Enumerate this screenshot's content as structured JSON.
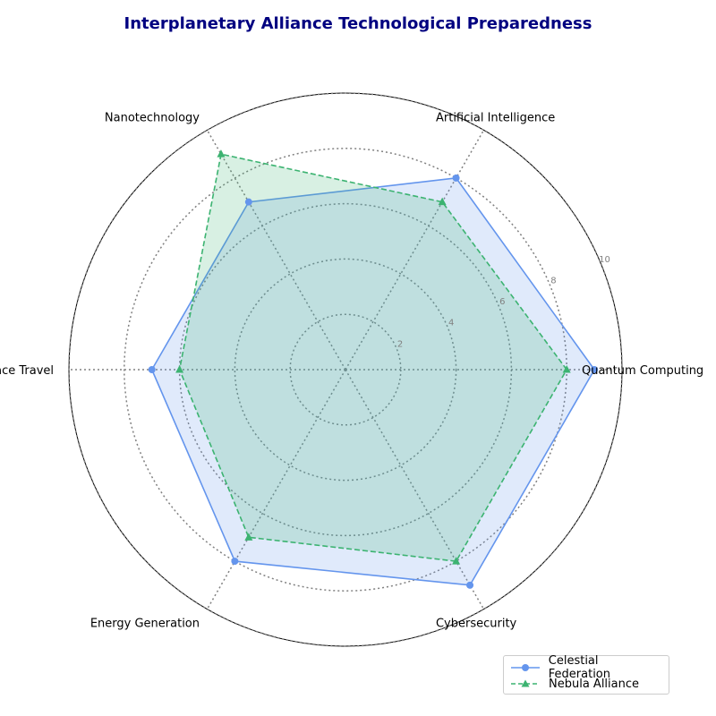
{
  "chart_data": {
    "type": "radar",
    "title": "Interplanetary Alliance Technological Preparedness",
    "categories": [
      "Quantum Computing",
      "Artificial Intelligence",
      "Nanotechnology",
      "Space Travel",
      "Energy Generation",
      "Cybersecurity"
    ],
    "rlim": [
      0,
      10
    ],
    "rticks": [
      "2",
      "4",
      "6",
      "8",
      "10"
    ],
    "grid": true,
    "legend_position": "bottom-right",
    "series": [
      {
        "name": "Celestial Federation",
        "values": [
          9,
          8,
          7,
          7,
          8,
          9
        ],
        "color": "#6495ED",
        "linestyle": "solid",
        "marker": "circle"
      },
      {
        "name": "Nebula Alliance",
        "values": [
          8,
          7,
          9,
          6,
          7,
          8
        ],
        "color": "#3CB371",
        "linestyle": "dashed",
        "marker": "triangle"
      }
    ]
  }
}
